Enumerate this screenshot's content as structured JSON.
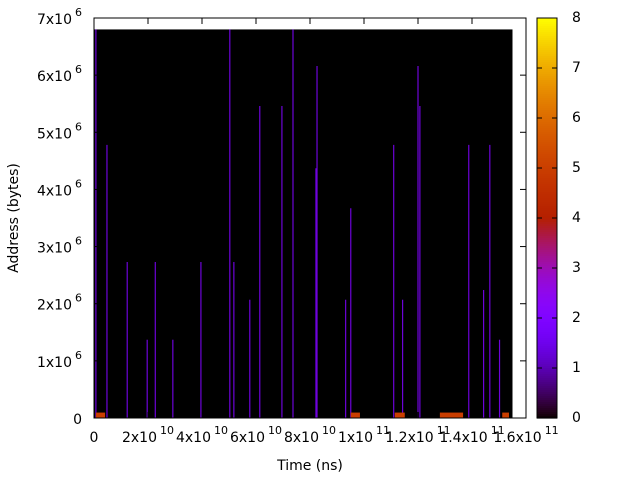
{
  "chart_data": {
    "type": "heatmap",
    "xlabel": "Time (ns)",
    "ylabel": "Address (bytes)",
    "xlim": [
      0,
      160000000000
    ],
    "ylim": [
      0,
      7000000
    ],
    "clim": [
      0,
      8
    ],
    "xticks": [
      0,
      {
        "value": 20000000000,
        "label": "2x10",
        "exponent": "10"
      },
      {
        "value": 40000000000,
        "label": "4x10",
        "exponent": "10"
      },
      {
        "value": 60000000000,
        "label": "6x10",
        "exponent": "10"
      },
      {
        "value": 80000000000,
        "label": "8x10",
        "exponent": "10"
      },
      {
        "value": 100000000000,
        "label": "1x10",
        "exponent": "11"
      },
      {
        "value": 120000000000,
        "label": "1.2x10",
        "exponent": "11"
      },
      {
        "value": 140000000000,
        "label": "1.4x10",
        "exponent": "11"
      },
      {
        "value": 160000000000,
        "label": "1.6x10",
        "exponent": "11"
      }
    ],
    "yticks": [
      0,
      {
        "value": 1000000,
        "label": "1x10",
        "exponent": "6"
      },
      {
        "value": 2000000,
        "label": "2x10",
        "exponent": "6"
      },
      {
        "value": 3000000,
        "label": "3x10",
        "exponent": "6"
      },
      {
        "value": 4000000,
        "label": "4x10",
        "exponent": "6"
      },
      {
        "value": 5000000,
        "label": "5x10",
        "exponent": "6"
      },
      {
        "value": 6000000,
        "label": "6x10",
        "exponent": "6"
      },
      {
        "value": 7000000,
        "label": "7x10",
        "exponent": "6"
      }
    ],
    "cticks": [
      0,
      1,
      2,
      3,
      4,
      5,
      6,
      7,
      8
    ],
    "extent": {
      "x": [
        0,
        155000000000
      ],
      "y": [
        0,
        6800000
      ]
    },
    "spikes": {
      "x": [
        700000000,
        4800000000,
        12300000000,
        22700000000,
        19700000000,
        29200000000,
        39600000000,
        50300000000,
        51800000000,
        57700000000,
        61400000000,
        69600000000,
        73700000000,
        82200000000,
        82600000000,
        95100000000,
        93200000000,
        111000000000,
        114300000000,
        120000000000,
        120700000000,
        138800000000,
        146600000000,
        144300000000,
        150200000000
      ],
      "y": [
        6800000,
        4780000,
        2730000,
        2730000,
        1370000,
        1370000,
        2730000,
        6800000,
        2730000,
        2070000,
        5460000,
        5460000,
        6800000,
        4370000,
        6160000,
        3670000,
        2070000,
        4780000,
        2070000,
        6160000,
        5460000,
        4780000,
        4780000,
        2240000,
        1370000
      ],
      "intensity": [
        2,
        2,
        2,
        2,
        2,
        2,
        2,
        2,
        2,
        2,
        2,
        2,
        2,
        2,
        2,
        2,
        2,
        2,
        2,
        2,
        2,
        2,
        2,
        2,
        2
      ]
    },
    "bands": {
      "x_start": [
        700000000,
        95100000000,
        111400000000,
        128100000000,
        151200000000
      ],
      "x_end": [
        4100000000,
        98500000000,
        115100000000,
        136700000000,
        153700000000
      ],
      "y_top": [
        60000,
        60000,
        60000,
        60000,
        60000
      ],
      "intensity": [
        5,
        5,
        5,
        5,
        5
      ]
    }
  }
}
